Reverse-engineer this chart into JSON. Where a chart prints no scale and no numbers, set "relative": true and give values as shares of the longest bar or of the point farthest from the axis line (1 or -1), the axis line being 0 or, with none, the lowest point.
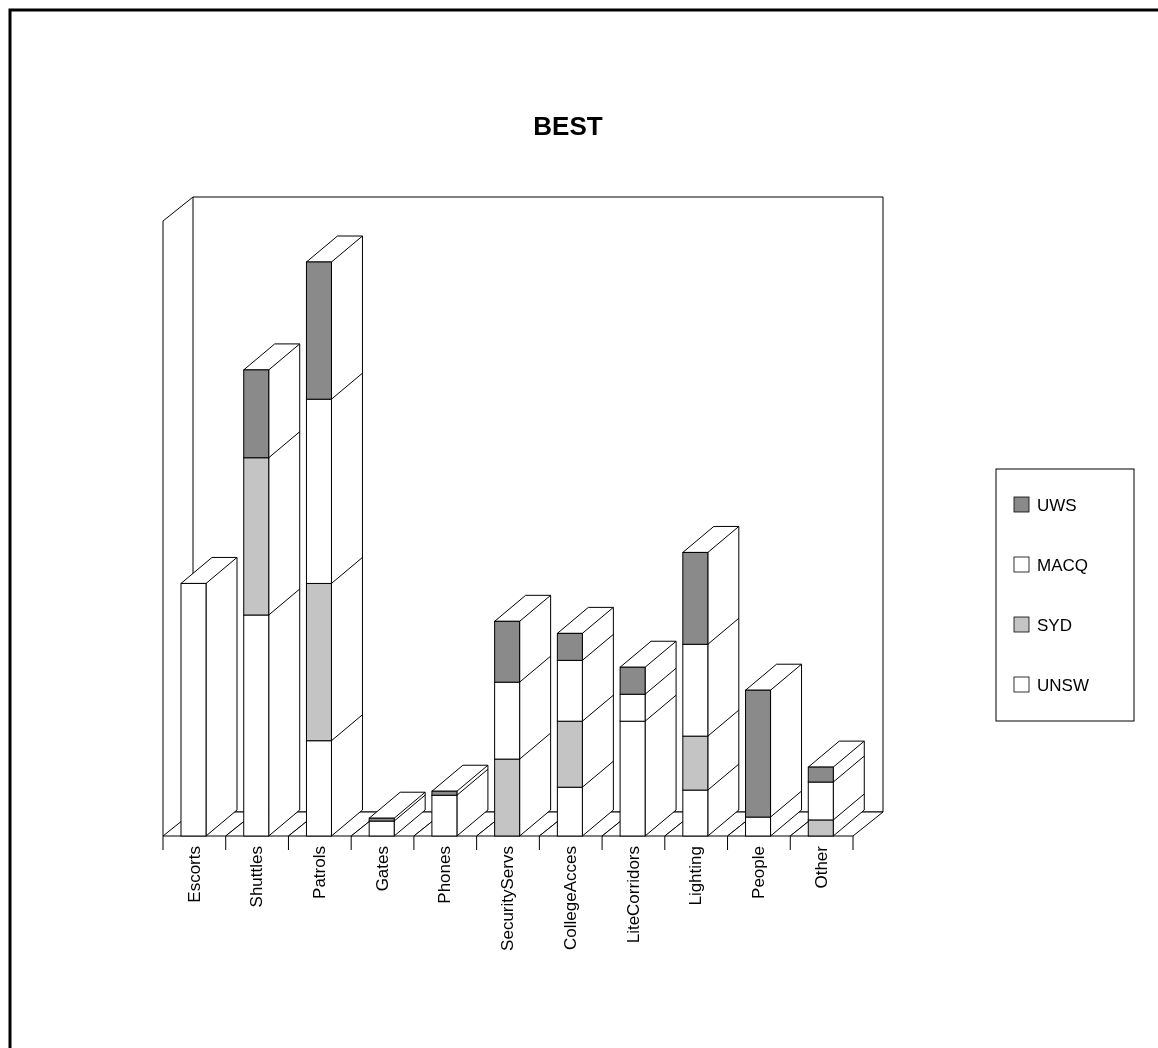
{
  "chart_data": {
    "type": "bar",
    "title": "BEST",
    "stacked": true,
    "relative": true,
    "legend": "right",
    "categories": [
      "Escorts",
      "Shuttles",
      "Patrols",
      "Gates",
      "Phones",
      "SecurityServs",
      "CollegeAcces",
      "LiteCorridors",
      "Lighting",
      "People",
      "Other"
    ],
    "series": [
      {
        "name": "UNSW",
        "color": "#ffffff",
        "values": [
          0.44,
          0.385,
          0.166,
          0.026,
          0.071,
          0,
          0.085,
          0.2,
          0.08,
          0.033,
          0
        ]
      },
      {
        "name": "SYD",
        "color": "#c4c4c4",
        "values": [
          0,
          0.274,
          0.274,
          0,
          0,
          0.134,
          0.115,
          0,
          0.094,
          0,
          0.028
        ]
      },
      {
        "name": "MACQ",
        "color": "#ffffff",
        "values": [
          0,
          0,
          0.321,
          0,
          0,
          0.134,
          0.106,
          0.047,
          0.16,
          0,
          0.066
        ]
      },
      {
        "name": "UWS",
        "color": "#8a8a8a",
        "values": [
          0,
          0.153,
          0.239,
          0.005,
          0.007,
          0.106,
          0.047,
          0.047,
          0.16,
          0.221,
          0.026
        ]
      }
    ]
  }
}
